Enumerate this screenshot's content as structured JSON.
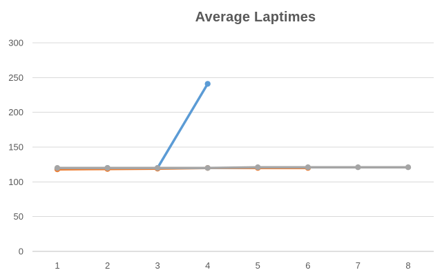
{
  "chart_data": {
    "type": "line",
    "title": "Average Laptimes",
    "xlabel": "",
    "ylabel": "",
    "categories": [
      "1",
      "2",
      "3",
      "4",
      "5",
      "6",
      "7",
      "8"
    ],
    "ylim": [
      0,
      300
    ],
    "yticks": [
      0,
      50,
      100,
      150,
      200,
      250,
      300
    ],
    "grid": true,
    "legend": "none",
    "series": [
      {
        "color": "#5B9BD5",
        "values": [
          119,
          120,
          120,
          241,
          null,
          null,
          null,
          null
        ]
      },
      {
        "color": "#ED7D31",
        "values": [
          118,
          118.5,
          119,
          120,
          120,
          120,
          null,
          null
        ]
      },
      {
        "color": "#A5A5A5",
        "values": [
          120,
          120,
          120,
          120,
          121,
          121,
          121,
          121
        ]
      }
    ]
  }
}
